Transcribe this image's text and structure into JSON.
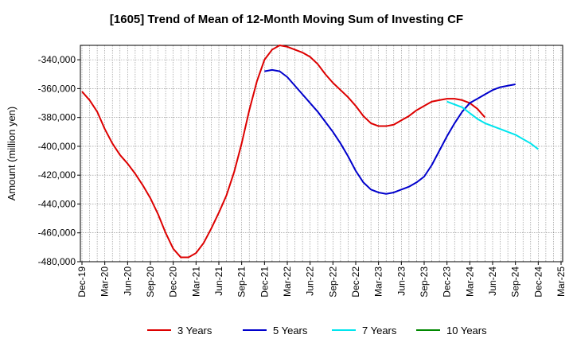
{
  "chart_data": {
    "type": "line",
    "title": "[1605]  Trend of Mean of 12-Month Moving Sum of Investing CF",
    "xlabel": "",
    "ylabel": "Amount (million yen)",
    "ylim": [
      -480000,
      -330000
    ],
    "yticks": [
      -340000,
      -360000,
      -380000,
      -400000,
      -420000,
      -440000,
      -460000,
      -480000
    ],
    "ytick_labels": [
      "-340,000",
      "-360,000",
      "-380,000",
      "-400,000",
      "-420,000",
      "-440,000",
      "-460,000",
      "-480,000"
    ],
    "x_start": "Dec-19",
    "x_end": "Mar-25",
    "x_tick_labels": [
      "Dec-19",
      "Mar-20",
      "Jun-20",
      "Sep-20",
      "Dec-20",
      "Mar-21",
      "Jun-21",
      "Sep-21",
      "Dec-21",
      "Mar-22",
      "Jun-22",
      "Sep-22",
      "Dec-22",
      "Mar-23",
      "Jun-23",
      "Sep-23",
      "Dec-23",
      "Mar-24",
      "Jun-24",
      "Sep-24",
      "Dec-24",
      "Mar-25"
    ],
    "grid": true,
    "legend_position": "bottom",
    "series": [
      {
        "name": "3 Years",
        "color": "#dd0000",
        "start_month": 0,
        "values": [
          -362000,
          -368000,
          -376000,
          -388000,
          -398000,
          -406000,
          -412000,
          -419000,
          -427000,
          -436000,
          -447000,
          -460000,
          -471000,
          -477000,
          -477000,
          -474000,
          -467000,
          -457000,
          -446000,
          -434000,
          -418000,
          -398000,
          -375000,
          -355000,
          -340000,
          -333000,
          -330000,
          -331000,
          -333000,
          -335000,
          -338000,
          -343000,
          -350000,
          -356000,
          -361000,
          -366000,
          -372000,
          -379000,
          -384000,
          -386000,
          -386000,
          -385000,
          -382000,
          -379000,
          -375000,
          -372000,
          -369000,
          -368000,
          -367000,
          -367000,
          -368000,
          -370000,
          -374000,
          -380000
        ]
      },
      {
        "name": "5 Years",
        "color": "#0000cc",
        "start_month": 24,
        "values": [
          -348000,
          -347000,
          -348000,
          -352000,
          -358000,
          -364000,
          -370000,
          -376000,
          -383000,
          -390000,
          -398000,
          -407000,
          -417000,
          -425000,
          -430000,
          -432000,
          -433000,
          -432000,
          -430000,
          -428000,
          -425000,
          -421000,
          -413000,
          -403000,
          -393000,
          -384000,
          -376000,
          -370000,
          -367000,
          -364000,
          -361000,
          -359000,
          -358000,
          -357000
        ]
      },
      {
        "name": "7 Years",
        "color": "#00e5ee",
        "start_month": 48,
        "values": [
          -369000,
          -371000,
          -373000,
          -377000,
          -381000,
          -384000,
          -386000,
          -388000,
          -390000,
          -392000,
          -395000,
          -398000,
          -402000
        ]
      },
      {
        "name": "10 Years",
        "color": "#008800",
        "start_month": 0,
        "values": []
      }
    ]
  }
}
